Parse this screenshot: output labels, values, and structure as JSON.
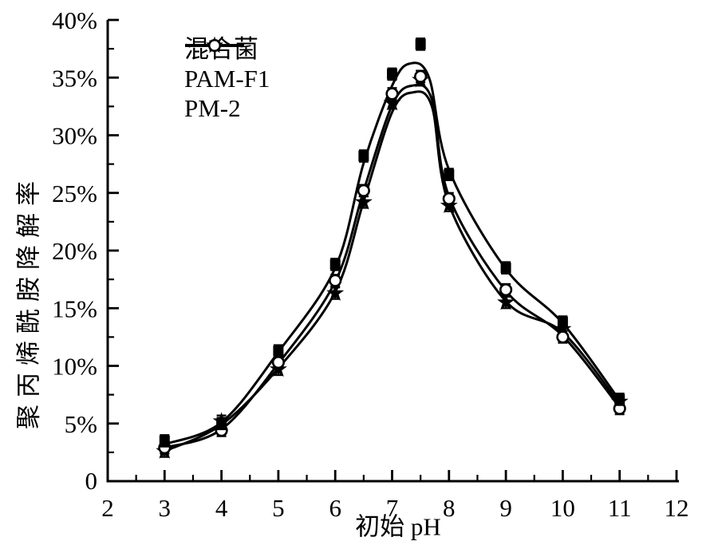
{
  "chart_data": {
    "type": "line",
    "title": "",
    "xlabel": "初始 pH",
    "ylabel": "聚丙烯酰胺降解率",
    "grid": false,
    "legend_position": "upper-left-inside",
    "colors": {
      "foreground": "#000000",
      "background": "#ffffff"
    },
    "x_range": [
      2,
      12
    ],
    "y_range_percent": [
      0,
      40
    ],
    "x_major_ticks": [
      2,
      3,
      4,
      5,
      6,
      7,
      8,
      9,
      10,
      11,
      12
    ],
    "x_tick_labels": [
      "2",
      "3",
      "4",
      "5",
      "6",
      "7",
      "8",
      "9",
      "10",
      "11",
      "12"
    ],
    "x_minor_step": 0.5,
    "y_major_ticks_percent": [
      0,
      5,
      10,
      15,
      20,
      25,
      30,
      35,
      40
    ],
    "y_tick_labels": [
      "0",
      "5%",
      "10%",
      "15%",
      "20%",
      "25%",
      "30%",
      "35%",
      "40%"
    ],
    "y_minor_step_percent": 2.5,
    "x": [
      3,
      4,
      5,
      6,
      6.5,
      7,
      7.5,
      8,
      9,
      10,
      11
    ],
    "series": [
      {
        "name": "混合菌",
        "marker": "filled-square",
        "values_percent": [
          3.5,
          5.0,
          11.3,
          18.8,
          28.2,
          35.3,
          37.9,
          26.6,
          18.5,
          13.8,
          7.1
        ],
        "error_percent": 0.5,
        "curve": [
          [
            3,
            3.2
          ],
          [
            4,
            5.1
          ],
          [
            5,
            11.2
          ],
          [
            6,
            18.5
          ],
          [
            6.5,
            27.6
          ],
          [
            7,
            34.3
          ],
          [
            7.3,
            36.2
          ],
          [
            7.65,
            35.0
          ],
          [
            8,
            27.0
          ],
          [
            9,
            18.4
          ],
          [
            10,
            13.7
          ],
          [
            11,
            7.0
          ]
        ]
      },
      {
        "name": "PAM-F1",
        "marker": "filled-star",
        "values_percent": [
          2.6,
          5.2,
          9.7,
          16.3,
          24.2,
          32.8,
          34.8,
          23.9,
          15.5,
          13.2,
          6.9
        ],
        "error_percent": 0.5,
        "curve": [
          [
            3,
            2.6
          ],
          [
            4,
            4.9
          ],
          [
            5,
            9.8
          ],
          [
            6,
            16.4
          ],
          [
            6.5,
            24.3
          ],
          [
            7,
            32.0
          ],
          [
            7.35,
            33.7
          ],
          [
            7.7,
            32.5
          ],
          [
            8,
            24.0
          ],
          [
            9,
            15.6
          ],
          [
            10,
            12.9
          ],
          [
            11,
            6.7
          ]
        ]
      },
      {
        "name": "PM-2",
        "marker": "open-circle",
        "values_percent": [
          2.9,
          4.4,
          10.3,
          17.4,
          25.2,
          33.6,
          35.1,
          24.5,
          16.6,
          12.5,
          6.3
        ],
        "error_percent": 0.5,
        "curve": [
          [
            3,
            2.9
          ],
          [
            4,
            4.5
          ],
          [
            5,
            10.2
          ],
          [
            6,
            17.3
          ],
          [
            6.5,
            25.2
          ],
          [
            7,
            32.6
          ],
          [
            7.35,
            34.3
          ],
          [
            7.7,
            33.1
          ],
          [
            8,
            24.7
          ],
          [
            9,
            16.5
          ],
          [
            10,
            12.6
          ],
          [
            11,
            6.4
          ]
        ]
      }
    ]
  }
}
